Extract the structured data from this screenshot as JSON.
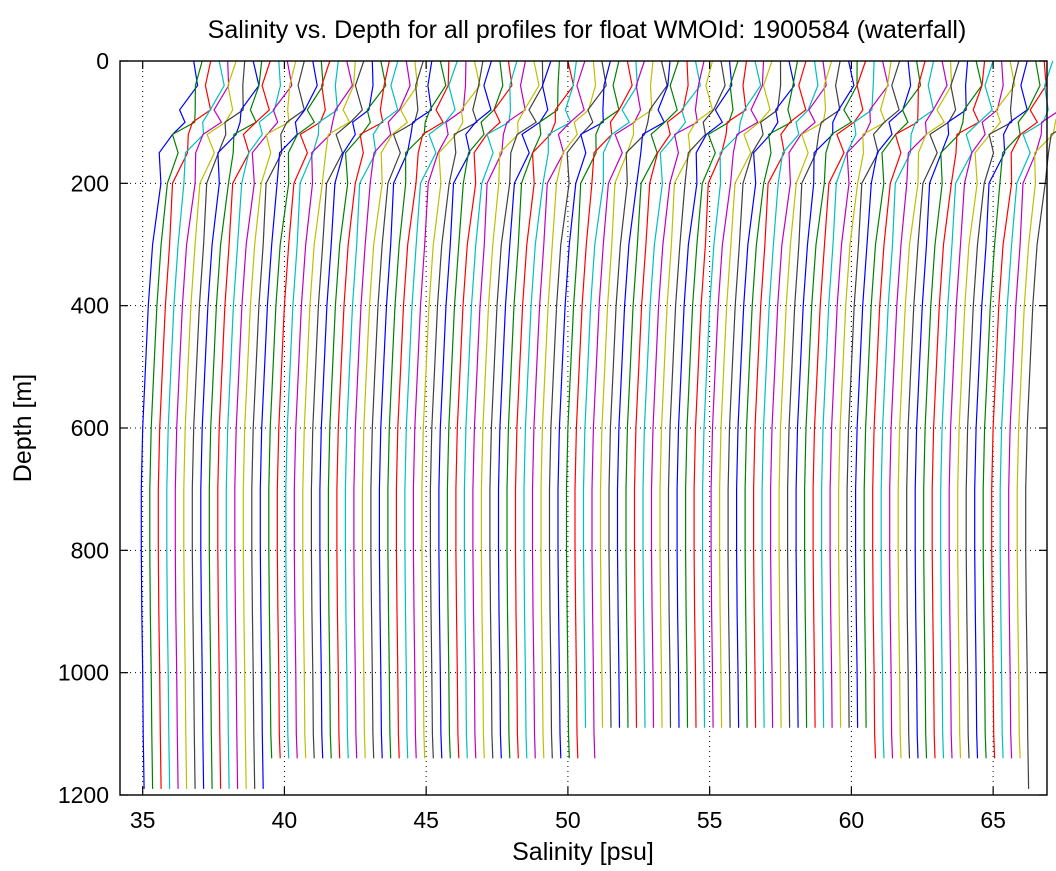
{
  "chart_data": {
    "type": "line",
    "title": "Salinity vs. Depth for all profiles for float WMOId: 1900584 (waterfall)",
    "xlabel": "Salinity [psu]",
    "ylabel": "Depth [m]",
    "xlim": [
      34.2,
      66.9
    ],
    "ylim": [
      0,
      1200
    ],
    "y_reversed": true,
    "grid": true,
    "x_ticks": [
      35,
      40,
      45,
      50,
      55,
      60,
      65
    ],
    "y_ticks": [
      0,
      200,
      400,
      600,
      800,
      1000,
      1200
    ],
    "series_count": 105,
    "offset_per_profile": 0.3,
    "first_profile": {
      "depth": [
        0,
        40,
        80,
        100,
        120,
        150,
        200,
        300,
        400,
        500,
        600,
        700,
        800,
        900,
        1000,
        1100,
        1190
      ],
      "salinity": [
        36.8,
        36.75,
        36.55,
        36.35,
        36.0,
        35.8,
        35.55,
        35.35,
        35.2,
        35.1,
        35.0,
        34.95,
        34.95,
        34.97,
        35.0,
        35.02,
        35.05
      ]
    },
    "profile_max_depths": [
      1190,
      1190,
      1190,
      1190,
      1190,
      1190,
      1190,
      1190,
      1190,
      1190,
      1190,
      1190,
      1190,
      1190,
      1190,
      1140,
      1140,
      1140,
      1140,
      1140,
      1140,
      1140,
      1140,
      1140,
      1140,
      1140,
      1140,
      1140,
      1140,
      1140,
      1140,
      1140,
      1140,
      1140,
      1140,
      1140,
      1140,
      1140,
      1140,
      1140,
      1140,
      1140,
      1140,
      1140,
      1140,
      1140,
      1140,
      1140,
      1140,
      1140,
      1140,
      1140,
      1090,
      1140,
      1090,
      1090,
      1090,
      1090,
      1090,
      1090,
      1090,
      1090,
      1090,
      1090,
      1090,
      1090,
      1090,
      1090,
      1090,
      1090,
      1090,
      1090,
      1090,
      1090,
      1090,
      1090,
      1090,
      1090,
      1090,
      1090,
      1090,
      1090,
      1090,
      1090,
      1090,
      1090,
      1140,
      1140,
      1140,
      1140,
      1140,
      1140,
      1140,
      1140,
      1140,
      1140,
      1140,
      1140,
      1140,
      1140,
      1140,
      1140,
      1140,
      1140,
      1190
    ],
    "colors": [
      "#0000ff",
      "#008000",
      "#ff0000",
      "#00bfbf",
      "#bf00bf",
      "#bfbf00",
      "#404040"
    ]
  }
}
